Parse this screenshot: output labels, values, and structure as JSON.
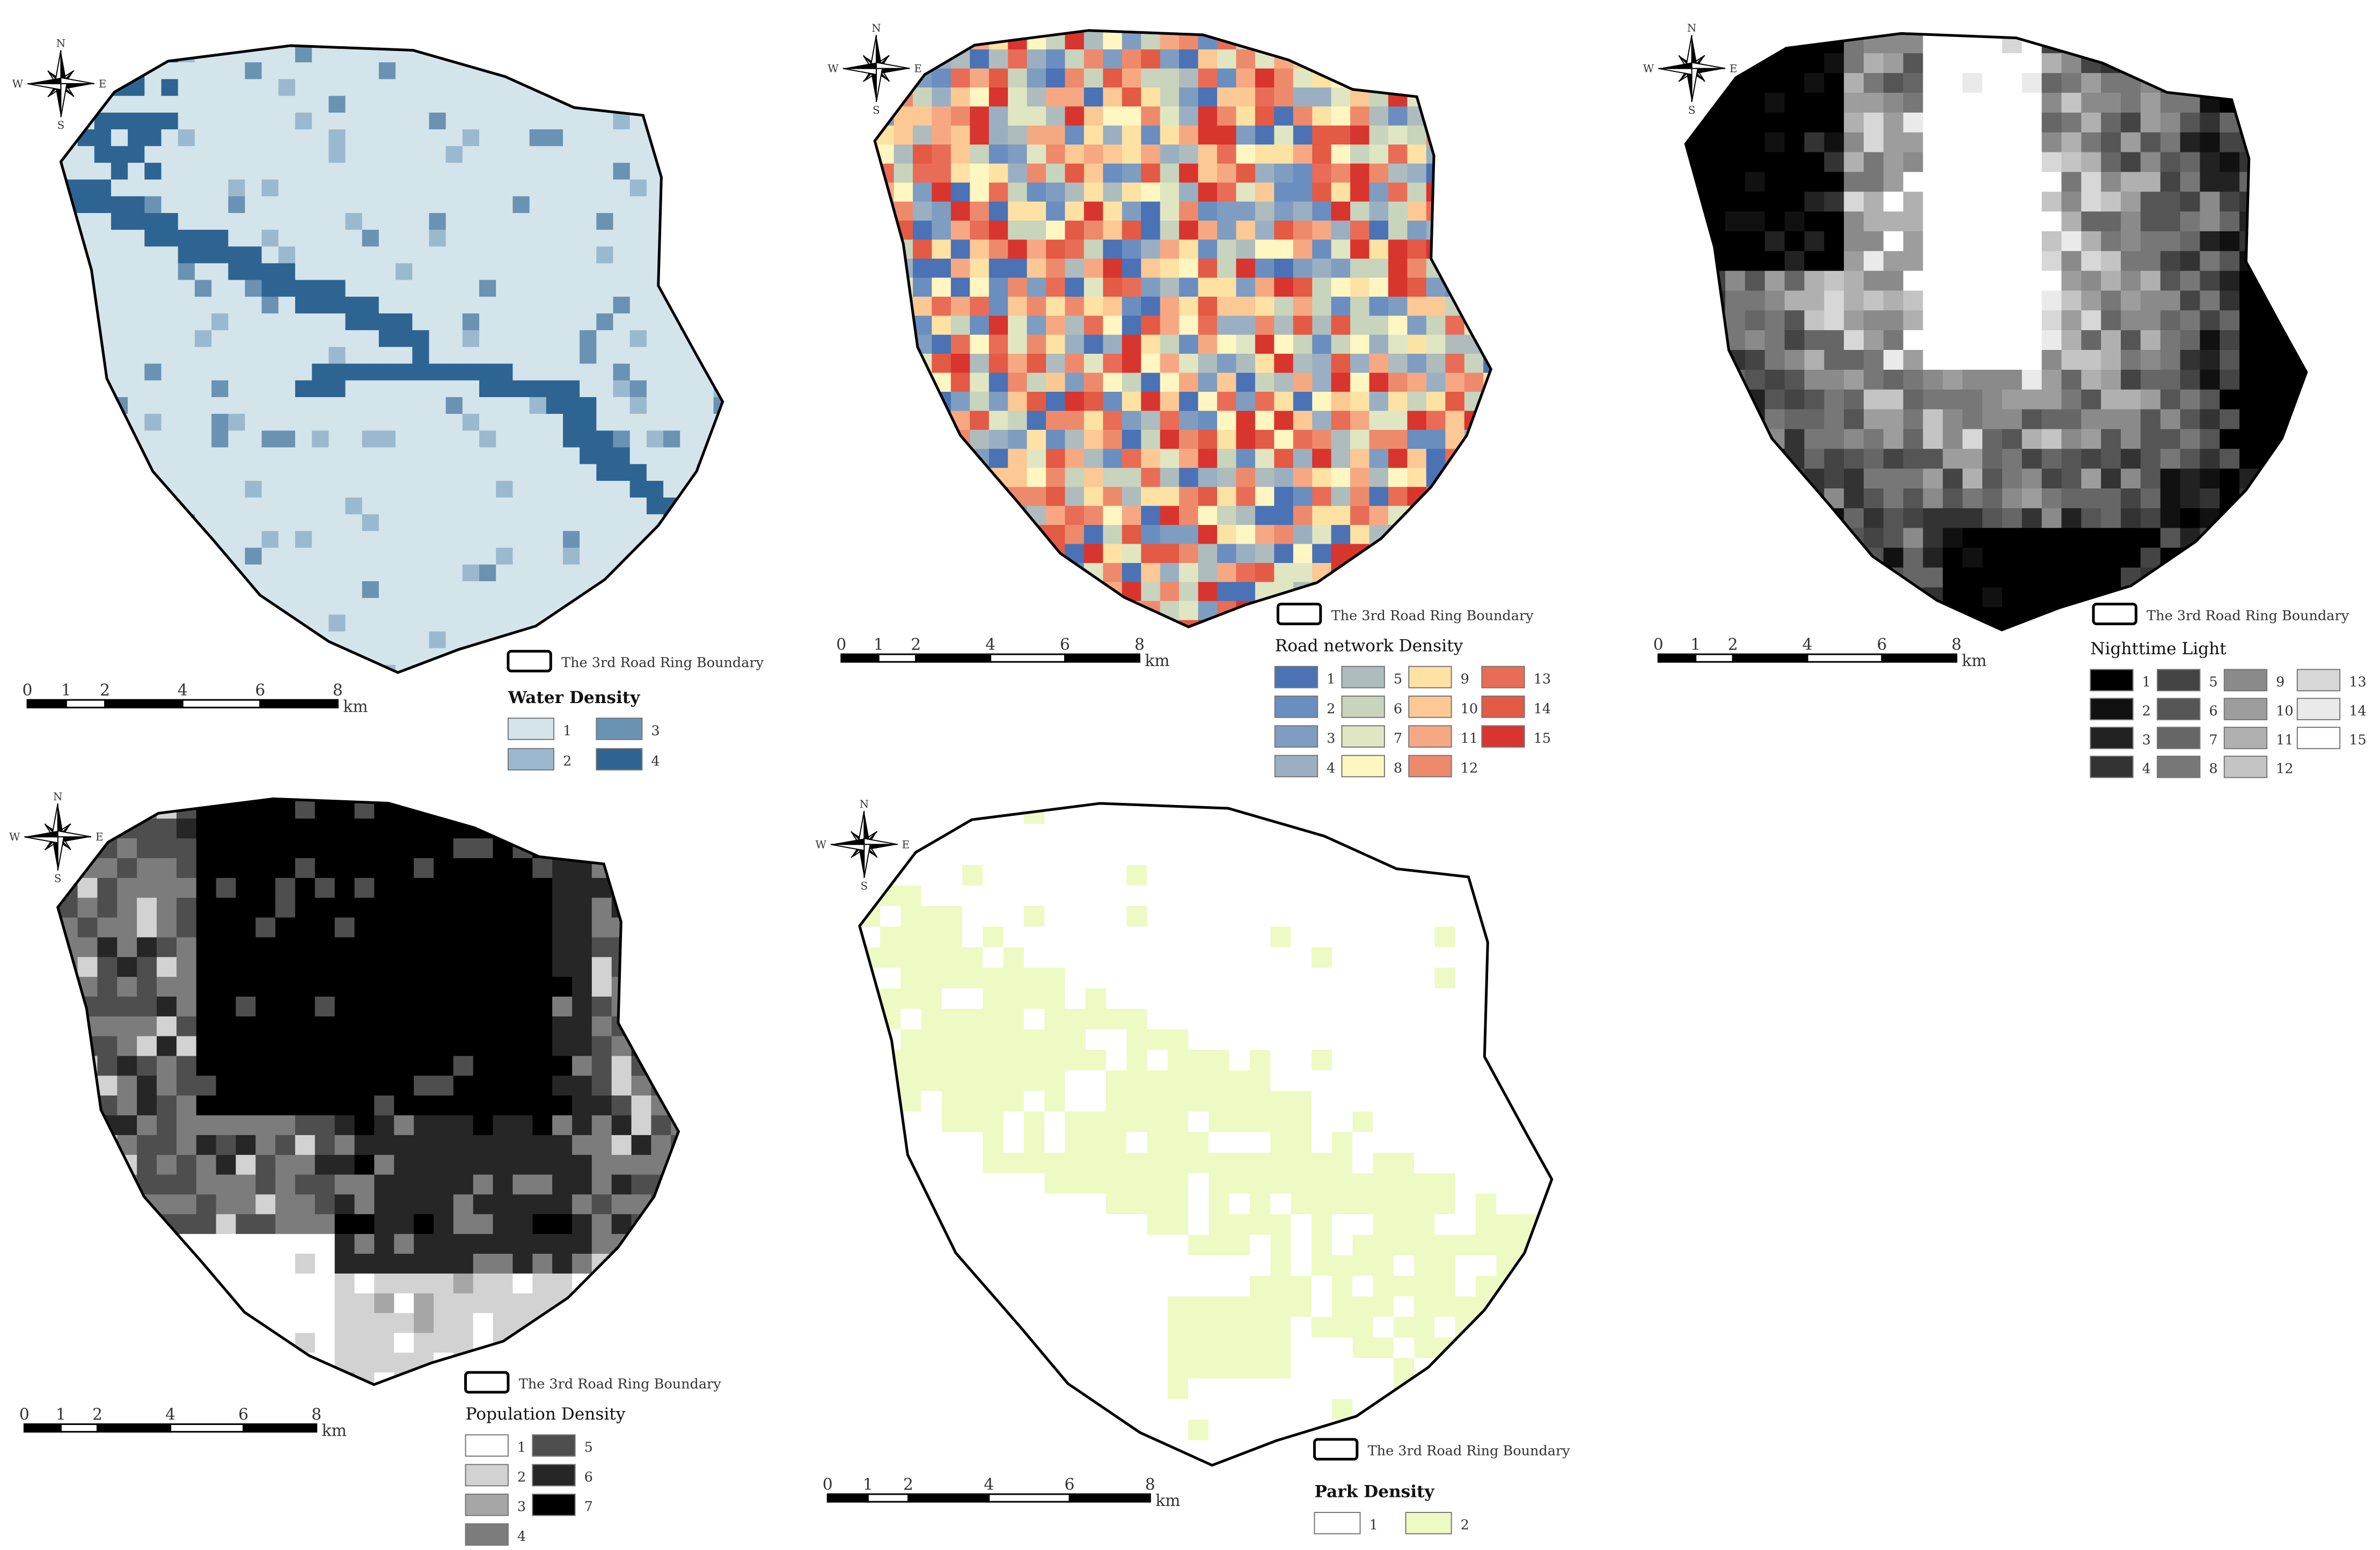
{
  "compass": {
    "n": "N",
    "s": "S",
    "e": "E",
    "w": "W"
  },
  "scale_bar": {
    "ticks": [
      "0",
      "1",
      "2",
      "4",
      "6",
      "8"
    ],
    "unit": "km"
  },
  "boundary_label": "The 3rd Road Ring Boundary",
  "panels": [
    {
      "id": "water",
      "legend_title": "Water Density",
      "classes": [
        "1",
        "2",
        "3",
        "4"
      ],
      "colors": [
        "#d4e4eb",
        "#9ab9cf",
        "#6a92b3",
        "#2e6492"
      ]
    },
    {
      "id": "road",
      "legend_title": "Road network Density",
      "classes": [
        "1",
        "2",
        "3",
        "4",
        "5",
        "6",
        "7",
        "8",
        "9",
        "10",
        "11",
        "12",
        "13",
        "14",
        "15"
      ],
      "colors": [
        "#4a72b5",
        "#6a8ebf",
        "#7f9dc0",
        "#9ab0c2",
        "#aebcbd",
        "#c8d4bc",
        "#e0e6c2",
        "#fff6c2",
        "#fde2a4",
        "#fcc894",
        "#f6a882",
        "#ee8a6c",
        "#e96c57",
        "#e35a45",
        "#d8352e"
      ]
    },
    {
      "id": "light",
      "legend_title": "Nighttime Light",
      "classes": [
        "1",
        "2",
        "3",
        "4",
        "5",
        "6",
        "7",
        "8",
        "9",
        "10",
        "11",
        "12",
        "13",
        "14",
        "15"
      ],
      "colors": [
        "#000000",
        "#111111",
        "#222222",
        "#333333",
        "#444444",
        "#555555",
        "#666666",
        "#777777",
        "#8a8a8a",
        "#9d9d9d",
        "#b0b0b0",
        "#c4c4c4",
        "#d7d7d7",
        "#eaeaea",
        "#ffffff"
      ]
    },
    {
      "id": "population",
      "legend_title": "Population Density",
      "classes": [
        "1",
        "2",
        "3",
        "4",
        "5",
        "6",
        "7"
      ],
      "colors": [
        "#ffffff",
        "#d2d2d2",
        "#a6a6a6",
        "#7c7c7c",
        "#4e4e4e",
        "#262626",
        "#000000"
      ]
    },
    {
      "id": "park",
      "legend_title": "Park Density",
      "classes": [
        "1",
        "2"
      ],
      "colors": [
        "#ffffff",
        "#eefac4"
      ]
    }
  ]
}
